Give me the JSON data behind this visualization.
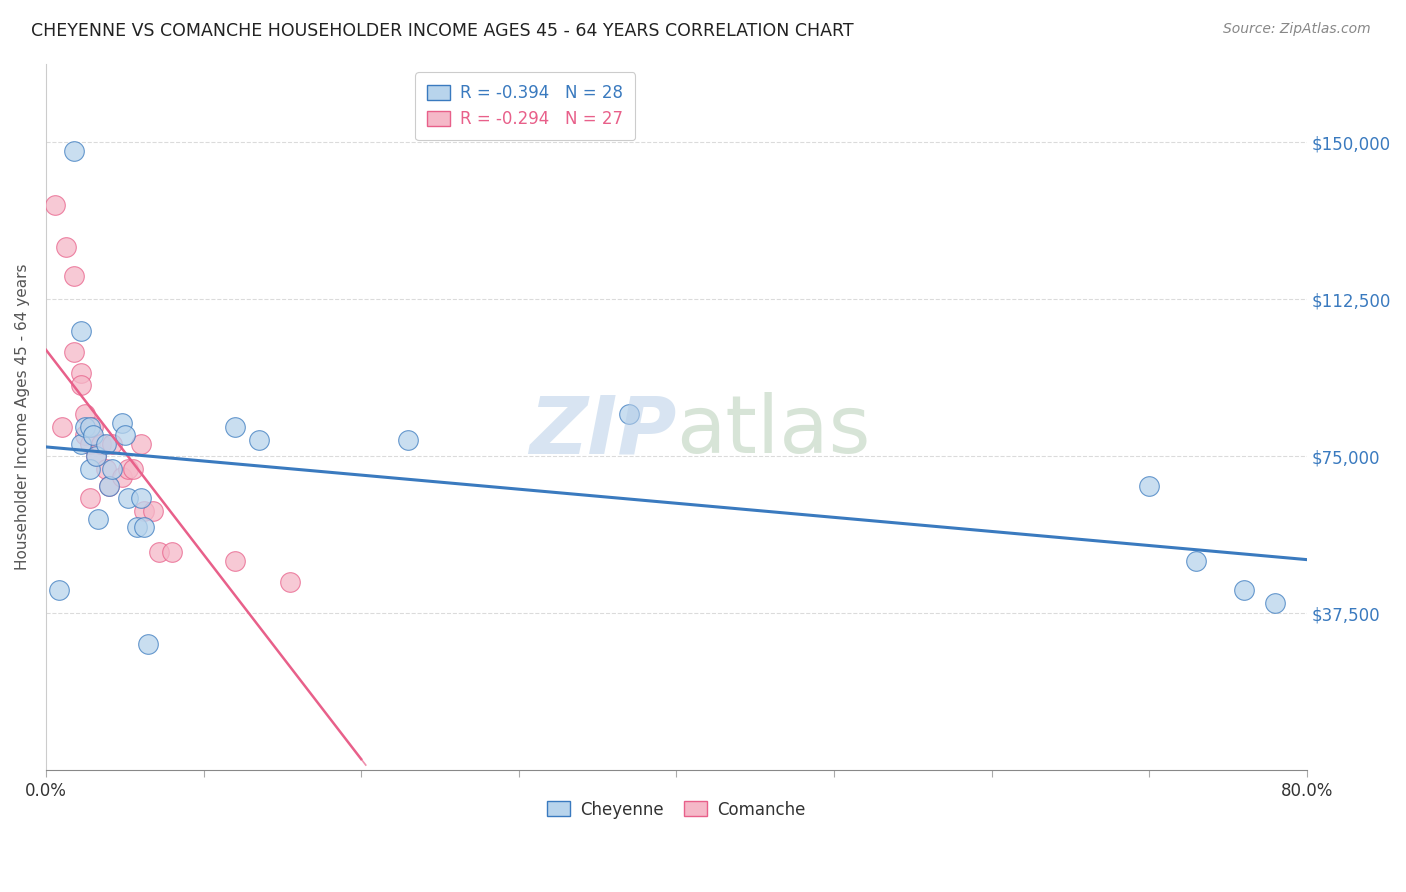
{
  "title": "CHEYENNE VS COMANCHE HOUSEHOLDER INCOME AGES 45 - 64 YEARS CORRELATION CHART",
  "source": "Source: ZipAtlas.com",
  "ylabel": "Householder Income Ages 45 - 64 years",
  "ytick_labels": [
    "$37,500",
    "$75,000",
    "$112,500",
    "$150,000"
  ],
  "ytick_values": [
    37500,
    75000,
    112500,
    150000
  ],
  "ymin": 0,
  "ymax": 168750,
  "xmin": 0.0,
  "xmax": 0.8,
  "legend_entries": [
    {
      "label": "R = -0.394   N = 28"
    },
    {
      "label": "R = -0.294   N = 27"
    }
  ],
  "cheyenne_color": "#b8d4ec",
  "comanche_color": "#f5b8c8",
  "cheyenne_line_color": "#3a7abf",
  "comanche_line_color": "#e8608a",
  "cheyenne_x": [
    0.008,
    0.018,
    0.022,
    0.022,
    0.025,
    0.028,
    0.028,
    0.03,
    0.032,
    0.033,
    0.038,
    0.04,
    0.042,
    0.048,
    0.05,
    0.052,
    0.058,
    0.06,
    0.062,
    0.065,
    0.12,
    0.135,
    0.23,
    0.37,
    0.7,
    0.73,
    0.76,
    0.78
  ],
  "cheyenne_y": [
    43000,
    148000,
    105000,
    78000,
    82000,
    82000,
    72000,
    80000,
    75000,
    60000,
    78000,
    68000,
    72000,
    83000,
    80000,
    65000,
    58000,
    65000,
    58000,
    30000,
    82000,
    79000,
    79000,
    85000,
    68000,
    50000,
    43000,
    40000
  ],
  "comanche_x": [
    0.006,
    0.01,
    0.013,
    0.018,
    0.018,
    0.022,
    0.022,
    0.025,
    0.025,
    0.028,
    0.028,
    0.03,
    0.032,
    0.035,
    0.038,
    0.04,
    0.042,
    0.048,
    0.052,
    0.055,
    0.06,
    0.062,
    0.068,
    0.072,
    0.08,
    0.12,
    0.155
  ],
  "comanche_y": [
    135000,
    82000,
    125000,
    118000,
    100000,
    95000,
    92000,
    85000,
    80000,
    78000,
    65000,
    82000,
    75000,
    78000,
    72000,
    68000,
    78000,
    70000,
    72000,
    72000,
    78000,
    62000,
    62000,
    52000,
    52000,
    50000,
    45000
  ],
  "background_color": "#ffffff",
  "grid_color": "#cccccc",
  "marker_size": 200
}
